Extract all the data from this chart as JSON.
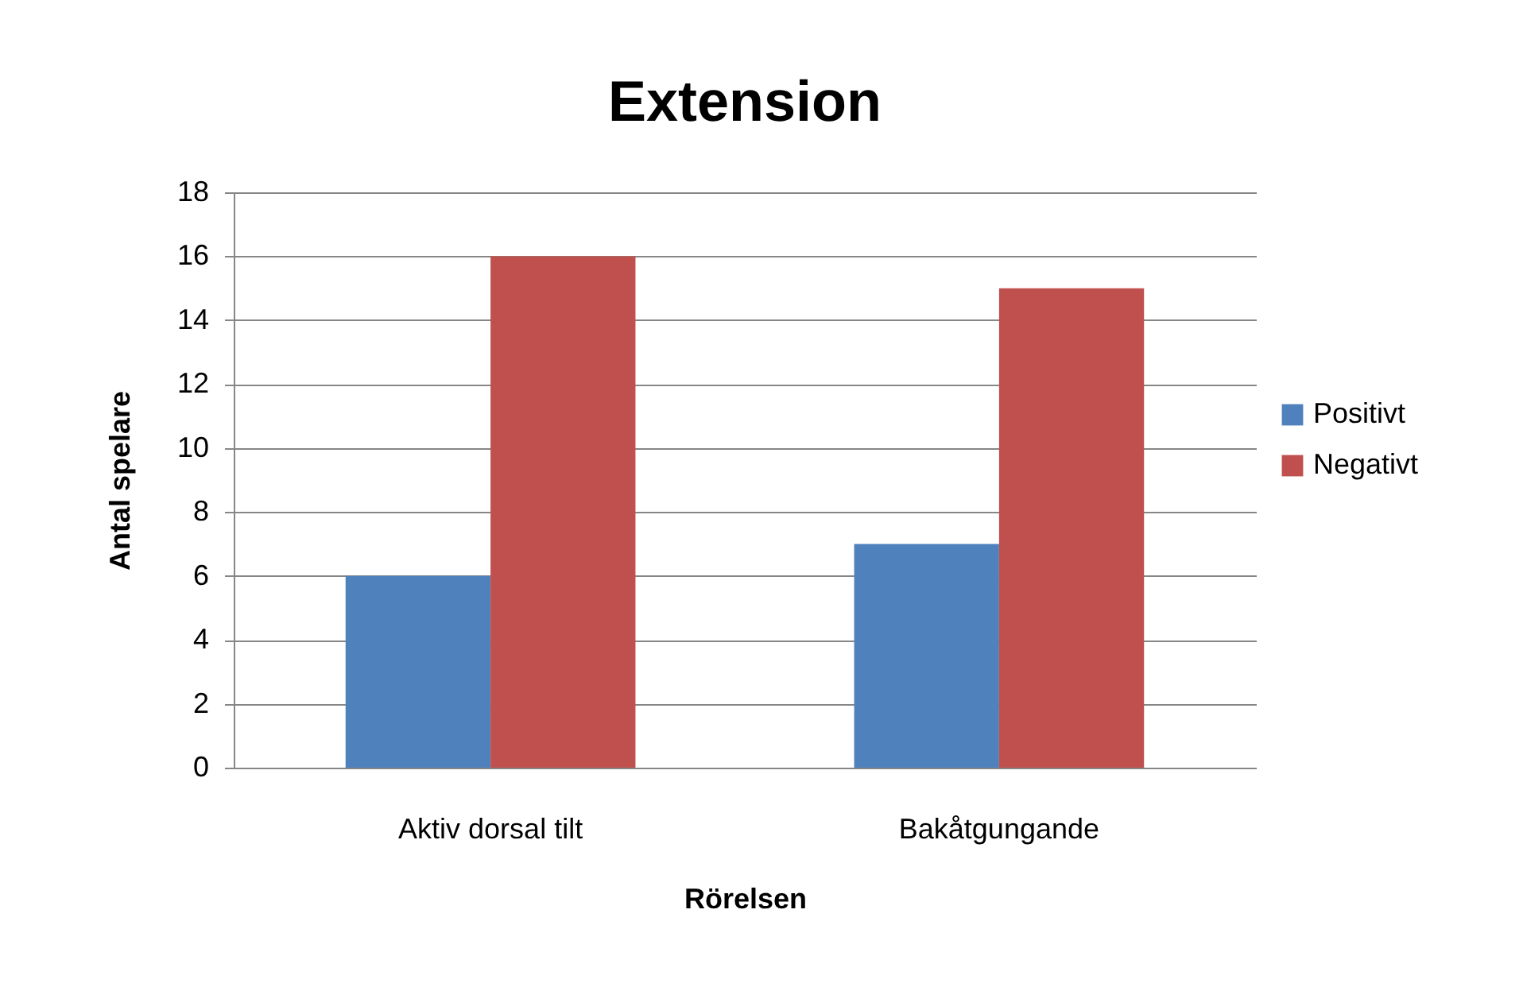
{
  "chart_data": {
    "type": "bar",
    "title": "Extension",
    "xlabel": "Rörelsen",
    "ylabel": "Antal spelare",
    "categories": [
      "Aktiv dorsal tilt",
      "Bakåtgungande"
    ],
    "series": [
      {
        "name": "Positivt",
        "color": "#4f81bd",
        "values": [
          6,
          7
        ]
      },
      {
        "name": "Negativt",
        "color": "#c0504d",
        "values": [
          16,
          15
        ]
      }
    ],
    "ylim": [
      0,
      18
    ],
    "yticks": [
      0,
      2,
      4,
      6,
      8,
      10,
      12,
      14,
      16,
      18
    ],
    "grid": "y",
    "legend": "right"
  }
}
